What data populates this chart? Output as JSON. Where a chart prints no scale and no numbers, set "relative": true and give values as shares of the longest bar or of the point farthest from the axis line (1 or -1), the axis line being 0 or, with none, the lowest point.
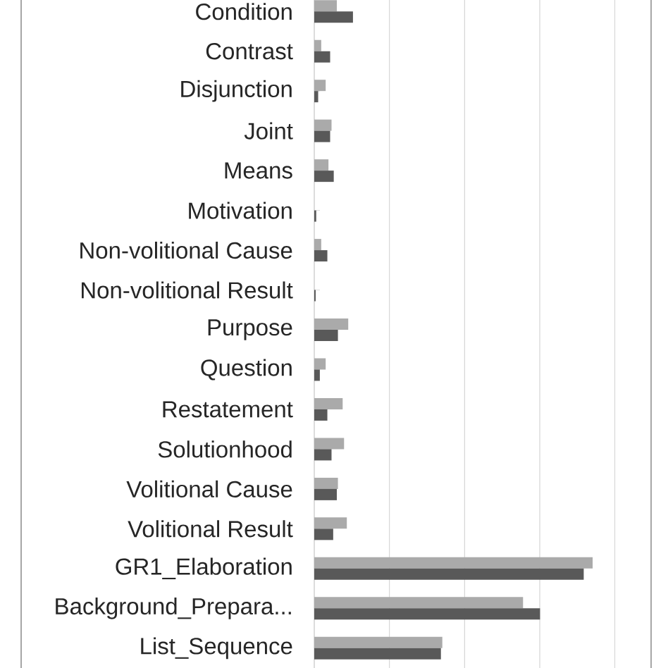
{
  "chart_data": {
    "type": "bar",
    "orientation": "horizontal",
    "relative": true,
    "grid": "x",
    "tick_labels": "y",
    "categories": [
      "Condition",
      "Contrast",
      "Disjunction",
      "Joint",
      "Means",
      "Motivation",
      "Non-volitional Cause",
      "Non-volitional Result",
      "Purpose",
      "Question",
      "Restatement",
      "Solutionhood",
      "Volitional Cause",
      "Volitional Result",
      "GR1_Elaboration",
      "Background_Prepara...",
      "List_Sequence"
    ],
    "series": [
      {
        "color": "#aaaaaa",
        "values": [
          0.081,
          0.025,
          0.041,
          0.062,
          0.051,
          null,
          0.025,
          null,
          0.122,
          0.041,
          0.102,
          0.107,
          0.085,
          0.117,
          1,
          0.75,
          0.46
        ]
      },
      {
        "color": "#595959",
        "values": [
          0.139,
          0.057,
          0.014,
          0.057,
          0.07,
          0.007,
          0.047,
          0.005,
          0.085,
          0.02,
          0.047,
          0.062,
          0.081,
          0.068,
          0.968,
          0.811,
          0.455
        ]
      }
    ]
  }
}
